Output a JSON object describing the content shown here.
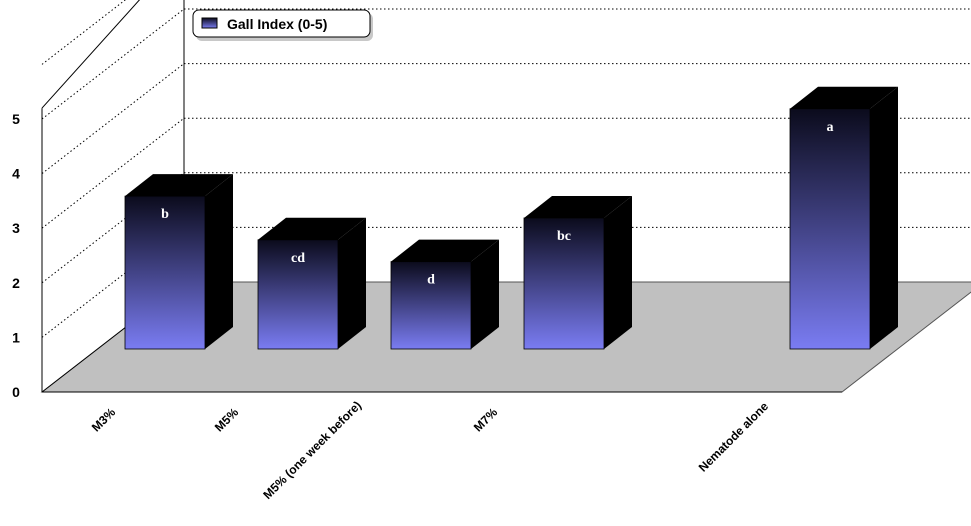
{
  "chart_data": {
    "type": "bar",
    "categories": [
      "M3%",
      "M5%",
      "M5% (one week before)",
      "M7%",
      "Nematode alone"
    ],
    "series": [
      {
        "name": "Gall Index (0-5)",
        "values": [
          2.8,
          2.0,
          1.6,
          2.4,
          4.4
        ],
        "labels": [
          "b",
          "cd",
          "d",
          "bc",
          "a"
        ]
      }
    ],
    "yticks": [
      "0",
      "1",
      "2",
      "3",
      "4",
      "5"
    ],
    "ylim": [
      0,
      6
    ],
    "grid": true,
    "legend_position": "top-left",
    "style": "3d-bar",
    "colors": {
      "bar_top": "#0b0b1c",
      "bar_bottom": "#7a7cf2",
      "bar_side": "#000000",
      "floor": "#c0c0c0"
    }
  }
}
